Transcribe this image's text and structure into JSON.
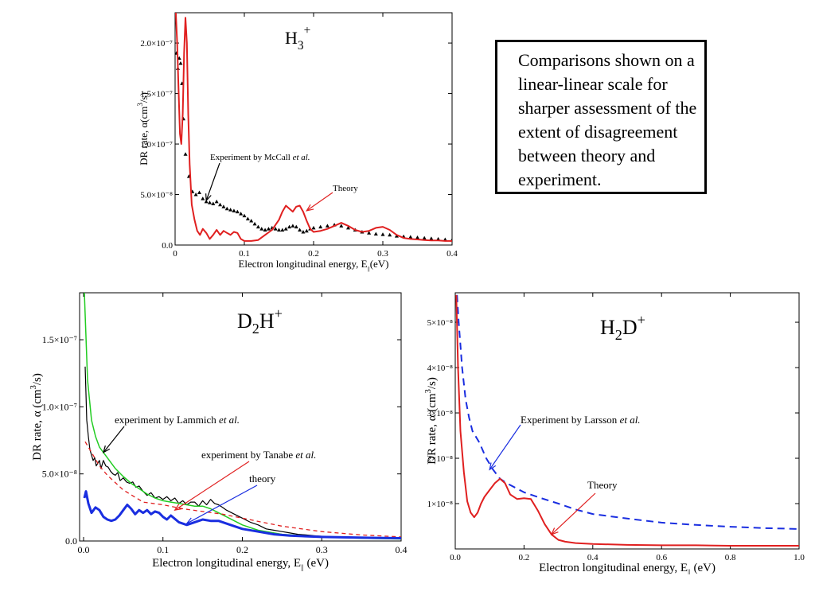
{
  "note": {
    "text": "Comparisons shown on a linear-linear scale for sharper assessment of the extent of disagreement between theory and experiment."
  },
  "chart_data": [
    {
      "type": "line",
      "title": "H3+",
      "title_main": "H",
      "title_sub": "3",
      "title_sup": "+",
      "xlabel": "Electron longitudinal energy, E",
      "xlabel_sub": "||",
      "xlabel_tail": "(eV)",
      "ylabel": "DR rate, α(cm",
      "ylabel_sup": "3",
      "ylabel_tail": "/s)",
      "xlim": [
        0,
        0.4
      ],
      "ylim": [
        0,
        2.3e-07
      ],
      "xticks": [
        0,
        0.1,
        0.2,
        0.3,
        0.4
      ],
      "xtick_labels": [
        "0",
        "0.1",
        "0.2",
        "0.3",
        "0.4"
      ],
      "yticks": [
        0,
        5e-08,
        1e-07,
        1.5e-07,
        2e-07
      ],
      "ytick_labels": [
        "0.0",
        "5.0×10⁻⁸",
        "1.0×10⁻⁷",
        "1.5×10⁻⁷",
        "2.0×10⁻⁷"
      ],
      "series": [
        {
          "name": "Experiment by McCall et al.",
          "style": "markers",
          "color": "#000000",
          "x": [
            0.002,
            0.004,
            0.006,
            0.008,
            0.01,
            0.012,
            0.015,
            0.02,
            0.025,
            0.03,
            0.035,
            0.04,
            0.045,
            0.05,
            0.055,
            0.06,
            0.065,
            0.07,
            0.075,
            0.08,
            0.085,
            0.09,
            0.095,
            0.1,
            0.105,
            0.11,
            0.115,
            0.12,
            0.125,
            0.13,
            0.135,
            0.14,
            0.145,
            0.15,
            0.155,
            0.16,
            0.165,
            0.17,
            0.175,
            0.18,
            0.185,
            0.19,
            0.195,
            0.2,
            0.21,
            0.22,
            0.23,
            0.24,
            0.25,
            0.26,
            0.27,
            0.28,
            0.29,
            0.3,
            0.31,
            0.32,
            0.33,
            0.34,
            0.35,
            0.36,
            0.37,
            0.38,
            0.39,
            0.4
          ],
          "y": [
            1.9e-07,
            1.75e-07,
            1.85e-07,
            1.8e-07,
            1.6e-07,
            1.25e-07,
            9e-08,
            6.8e-08,
            5.3e-08,
            5e-08,
            5.2e-08,
            4.6e-08,
            4.3e-08,
            4.2e-08,
            4.1e-08,
            4.3e-08,
            4e-08,
            3.8e-08,
            3.6e-08,
            3.5e-08,
            3.4e-08,
            3.3e-08,
            3.1e-08,
            2.9e-08,
            2.6e-08,
            2.4e-08,
            2.1e-08,
            1.8e-08,
            1.6e-08,
            1.5e-08,
            1.6e-08,
            1.7e-08,
            1.6e-08,
            1.5e-08,
            1.5e-08,
            1.6e-08,
            1.8e-08,
            1.9e-08,
            1.8e-08,
            1.5e-08,
            1.3e-08,
            1.4e-08,
            1.6e-08,
            1.7e-08,
            1.8e-08,
            1.9e-08,
            2e-08,
            1.9e-08,
            1.7e-08,
            1.5e-08,
            1.3e-08,
            1.2e-08,
            1.1e-08,
            1.05e-08,
            1e-08,
            9e-09,
            8.5e-09,
            8e-09,
            7.5e-09,
            7e-09,
            6.5e-09,
            6e-09,
            5.5e-09,
            5e-09
          ]
        },
        {
          "name": "Theory",
          "style": "line",
          "color": "#e02020",
          "x": [
            0.001,
            0.003,
            0.005,
            0.007,
            0.009,
            0.011,
            0.013,
            0.015,
            0.017,
            0.019,
            0.021,
            0.024,
            0.028,
            0.032,
            0.036,
            0.04,
            0.045,
            0.05,
            0.055,
            0.06,
            0.065,
            0.07,
            0.075,
            0.08,
            0.085,
            0.09,
            0.095,
            0.1,
            0.11,
            0.12,
            0.13,
            0.14,
            0.15,
            0.155,
            0.16,
            0.165,
            0.17,
            0.175,
            0.18,
            0.185,
            0.19,
            0.195,
            0.2,
            0.21,
            0.22,
            0.23,
            0.24,
            0.25,
            0.26,
            0.27,
            0.28,
            0.29,
            0.3,
            0.31,
            0.32,
            0.33,
            0.34,
            0.35,
            0.36,
            0.37,
            0.38,
            0.39,
            0.4
          ],
          "y": [
            2.3e-07,
            2e-07,
            1.55e-07,
            1.1e-07,
            1e-07,
            1.3e-07,
            1.9e-07,
            2.25e-07,
            2e-07,
            1.3e-07,
            8e-08,
            4e-08,
            2.5e-08,
            1.4e-08,
            1e-08,
            1.6e-08,
            1.2e-08,
            6e-09,
            1e-08,
            1.5e-08,
            1e-08,
            1.4e-08,
            1.2e-08,
            1e-08,
            1.3e-08,
            1.2e-08,
            6e-09,
            4e-09,
            4e-09,
            5e-09,
            1e-08,
            1.5e-08,
            2.5e-08,
            3.3e-08,
            3.9e-08,
            3.6e-08,
            3.3e-08,
            3.8e-08,
            3.9e-08,
            3.3e-08,
            2.4e-08,
            1.6e-08,
            1.3e-08,
            1.4e-08,
            1.6e-08,
            1.9e-08,
            2.2e-08,
            1.9e-08,
            1.5e-08,
            1.3e-08,
            1.4e-08,
            1.7e-08,
            1.8e-08,
            1.5e-08,
            1e-08,
            7e-09,
            6e-09,
            5.5e-09,
            5e-09,
            4.5e-09,
            4.5e-09,
            4e-09,
            4e-09
          ]
        }
      ],
      "annotations": [
        {
          "text": "Experiment by McCall ",
          "italic": "et al.",
          "target": [
            0.045,
            4.4e-08
          ],
          "color": "#000000"
        },
        {
          "text": "Theory",
          "italic": "",
          "target": [
            0.19,
            3.4e-08
          ],
          "color": "#e02020"
        }
      ]
    },
    {
      "type": "line",
      "title": "D2H+",
      "title_main": "D",
      "title_sub": "2",
      "title_mid": "H",
      "title_sup": "+",
      "xlabel": "Electron longitudinal energy, E",
      "xlabel_sub": "||",
      "xlabel_tail": " (eV)",
      "ylabel": "DR rate, α (cm",
      "ylabel_sup": "3",
      "ylabel_tail": "/s)",
      "xlim": [
        -0.005,
        0.4
      ],
      "ylim": [
        0,
        1.85e-07
      ],
      "xticks": [
        0,
        0.1,
        0.2,
        0.3,
        0.4
      ],
      "xtick_labels": [
        "0.0",
        "0.1",
        "0.2",
        "0.3",
        "0.4"
      ],
      "yticks": [
        0,
        5e-08,
        1e-07,
        1.5e-07
      ],
      "ytick_labels": [
        "0.0",
        "5.0×10⁻⁸",
        "1.0×10⁻⁷",
        "1.5×10⁻⁷"
      ],
      "series": [
        {
          "name": "experiment by Lammich et al.",
          "style": "line",
          "color": "#000000",
          "x": [
            0.002,
            0.004,
            0.006,
            0.008,
            0.01,
            0.012,
            0.014,
            0.016,
            0.018,
            0.02,
            0.022,
            0.025,
            0.028,
            0.031,
            0.034,
            0.037,
            0.04,
            0.043,
            0.046,
            0.05,
            0.054,
            0.058,
            0.062,
            0.066,
            0.07,
            0.075,
            0.08,
            0.085,
            0.09,
            0.095,
            0.1,
            0.105,
            0.11,
            0.115,
            0.12,
            0.125,
            0.13,
            0.135,
            0.14,
            0.145,
            0.15,
            0.155,
            0.16,
            0.165,
            0.17,
            0.175,
            0.18,
            0.19,
            0.2,
            0.21,
            0.22,
            0.23,
            0.24,
            0.25,
            0.26,
            0.27,
            0.28,
            0.29,
            0.3,
            0.32,
            0.34,
            0.36,
            0.38,
            0.4
          ],
          "y": [
            1.3e-07,
            9e-08,
            7.8e-08,
            6.8e-08,
            6.4e-08,
            6e-08,
            6.2e-08,
            5.6e-08,
            5.8e-08,
            6e-08,
            5.4e-08,
            6e-08,
            5.6e-08,
            5.5e-08,
            5.2e-08,
            5e-08,
            4.9e-08,
            5.1e-08,
            4.5e-08,
            4.7e-08,
            4.4e-08,
            4.3e-08,
            4.4e-08,
            4e-08,
            4.1e-08,
            3.7e-08,
            3.4e-08,
            3.6e-08,
            3.2e-08,
            3.3e-08,
            3.1e-08,
            3.3e-08,
            3e-08,
            3.2e-08,
            2.8e-08,
            3e-08,
            2.7e-08,
            2.9e-08,
            2.9e-08,
            2.6e-08,
            3e-08,
            2.7e-08,
            3.1e-08,
            2.8e-08,
            2.7e-08,
            2.5e-08,
            2.3e-08,
            2e-08,
            1.7e-08,
            1.4e-08,
            1.2e-08,
            9e-09,
            8e-09,
            7e-09,
            6e-09,
            5e-09,
            4.5e-09,
            4e-09,
            3.5e-09,
            3e-09,
            2.8e-09,
            2.5e-09,
            2.3e-09,
            2e-09
          ]
        },
        {
          "name": "experiment (green)",
          "style": "line",
          "color": "#22cc22",
          "x": [
            0.001,
            0.005,
            0.01,
            0.015,
            0.02,
            0.025,
            0.03,
            0.04,
            0.05,
            0.06,
            0.07,
            0.08,
            0.09,
            0.1,
            0.11,
            0.12,
            0.13,
            0.14,
            0.15,
            0.16,
            0.17,
            0.18,
            0.2,
            0.22,
            0.25,
            0.3,
            0.35,
            0.4
          ],
          "y": [
            1.85e-07,
            1.2e-07,
            9e-08,
            7.8e-08,
            7e-08,
            6.6e-08,
            6.2e-08,
            5.4e-08,
            4.8e-08,
            4.3e-08,
            3.9e-08,
            3.5e-08,
            3.2e-08,
            3e-08,
            2.9e-08,
            2.8e-08,
            2.7e-08,
            2.6e-08,
            2.6e-08,
            2.4e-08,
            2.1e-08,
            1.8e-08,
            1.2e-08,
            8e-09,
            5e-09,
            3e-09,
            2e-09,
            1.5e-09
          ]
        },
        {
          "name": "experiment by Tanabe et al.",
          "style": "dashed",
          "color": "#e02020",
          "x": [
            0.002,
            0.01,
            0.02,
            0.03,
            0.05,
            0.075,
            0.1,
            0.125,
            0.15,
            0.175,
            0.2,
            0.25,
            0.3,
            0.35,
            0.4
          ],
          "y": [
            7.4e-08,
            6.6e-08,
            5.6e-08,
            4.9e-08,
            3.8e-08,
            2.9e-08,
            2.7e-08,
            2.4e-08,
            2.2e-08,
            2e-08,
            1.7e-08,
            1.1e-08,
            7e-09,
            4.5e-09,
            3e-09
          ]
        },
        {
          "name": "theory",
          "style": "line",
          "color": "#1a2ee0",
          "x": [
            0.001,
            0.003,
            0.006,
            0.01,
            0.015,
            0.02,
            0.025,
            0.03,
            0.035,
            0.04,
            0.045,
            0.05,
            0.055,
            0.06,
            0.065,
            0.07,
            0.075,
            0.08,
            0.085,
            0.09,
            0.095,
            0.1,
            0.105,
            0.11,
            0.12,
            0.13,
            0.14,
            0.15,
            0.16,
            0.17,
            0.18,
            0.19,
            0.2,
            0.22,
            0.24,
            0.26,
            0.28,
            0.3,
            0.32,
            0.34,
            0.36,
            0.38,
            0.4
          ],
          "y": [
            3.2e-08,
            3.7e-08,
            2.8e-08,
            2.1e-08,
            2.5e-08,
            2.3e-08,
            1.8e-08,
            1.6e-08,
            1.5e-08,
            1.6e-08,
            1.9e-08,
            2.3e-08,
            2.7e-08,
            2.4e-08,
            2e-08,
            2.3e-08,
            2.1e-08,
            2.3e-08,
            2e-08,
            2.2e-08,
            2.1e-08,
            1.8e-08,
            1.6e-08,
            1.9e-08,
            1.4e-08,
            1.2e-08,
            1.4e-08,
            1.6e-08,
            1.5e-08,
            1.5e-08,
            1.3e-08,
            1.1e-08,
            9e-09,
            7e-09,
            5e-09,
            4e-09,
            3.5e-09,
            3e-09,
            2.8e-09,
            2.6e-09,
            2.4e-09,
            2.2e-09,
            2.1e-09
          ]
        }
      ],
      "annotations": [
        {
          "text": "experiment by Lammich ",
          "italic": "et al.",
          "target": [
            0.025,
            6.6e-08
          ],
          "color": "#000000"
        },
        {
          "text": "experiment by Tanabe ",
          "italic": "et al.",
          "target": [
            0.115,
            2.3e-08
          ],
          "color": "#e02020"
        },
        {
          "text": "theory",
          "italic": "",
          "target": [
            0.13,
            1.3e-08
          ],
          "color": "#1a2ee0"
        }
      ]
    },
    {
      "type": "line",
      "title": "H2D+",
      "title_main": "H",
      "title_sub": "2",
      "title_mid": "D",
      "title_sup": "+",
      "xlabel": "Electron longitudinal energy, E",
      "xlabel_sub": "||",
      "xlabel_tail": " (eV)",
      "ylabel": "DR rate, α (cm",
      "ylabel_sup": "3",
      "ylabel_tail": "/s)",
      "xlim": [
        0,
        1.0
      ],
      "ylim": [
        0,
        5.65e-08
      ],
      "xticks": [
        0,
        0.2,
        0.4,
        0.6,
        0.8,
        1.0
      ],
      "xtick_labels": [
        "0.0",
        "0.2",
        "0.4",
        "0.6",
        "0.8",
        "1.0"
      ],
      "yticks": [
        1e-08,
        2e-08,
        3e-08,
        4e-08,
        5e-08
      ],
      "ytick_labels": [
        "1×10⁻⁸",
        "2×10⁻⁸",
        "3×10⁻⁸",
        "4×10⁻⁸",
        "5×10⁻⁸"
      ],
      "series": [
        {
          "name": "Experiment by Larsson et al.",
          "style": "dashed",
          "color": "#1a2ee0",
          "x": [
            0.005,
            0.01,
            0.015,
            0.02,
            0.03,
            0.04,
            0.05,
            0.07,
            0.09,
            0.11,
            0.13,
            0.15,
            0.2,
            0.25,
            0.3,
            0.35,
            0.4,
            0.5,
            0.6,
            0.7,
            0.8,
            0.9,
            1.0
          ],
          "y": [
            5.6e-08,
            5e-08,
            4.5e-08,
            4e-08,
            3.3e-08,
            2.9e-08,
            2.6e-08,
            2.35e-08,
            2e-08,
            1.75e-08,
            1.55e-08,
            1.45e-08,
            1.25e-08,
            1.12e-08,
            1e-08,
            8.7e-09,
            7.7e-09,
            6.7e-09,
            5.8e-09,
            5.3e-09,
            4.9e-09,
            4.6e-09,
            4.4e-09
          ]
        },
        {
          "name": "Theory",
          "style": "line",
          "color": "#e02020",
          "x": [
            0.003,
            0.008,
            0.015,
            0.025,
            0.035,
            0.045,
            0.055,
            0.065,
            0.075,
            0.085,
            0.1,
            0.115,
            0.13,
            0.145,
            0.16,
            0.18,
            0.2,
            0.22,
            0.24,
            0.26,
            0.28,
            0.3,
            0.32,
            0.35,
            0.4,
            0.5,
            0.6,
            0.7,
            0.8,
            0.9,
            1.0
          ],
          "y": [
            5.6e-08,
            4e-08,
            2.6e-08,
            1.7e-08,
            1.05e-08,
            8e-09,
            7e-09,
            8e-09,
            1e-08,
            1.15e-08,
            1.3e-08,
            1.45e-08,
            1.55e-08,
            1.45e-08,
            1.2e-08,
            1.1e-08,
            1.12e-08,
            1.1e-08,
            8.5e-09,
            5.5e-09,
            3.2e-09,
            2e-09,
            1.6e-09,
            1.3e-09,
            1.1e-09,
            9e-10,
            8e-10,
            8e-10,
            7e-10,
            7e-10,
            7e-10
          ]
        }
      ],
      "annotations": [
        {
          "text": "Experiment by Larsson ",
          "italic": "et al.",
          "target": [
            0.1,
            1.75e-08
          ],
          "color": "#000000"
        },
        {
          "text": "Theory",
          "italic": "",
          "target": [
            0.28,
            3.2e-09
          ],
          "color": "#000000"
        }
      ]
    }
  ]
}
